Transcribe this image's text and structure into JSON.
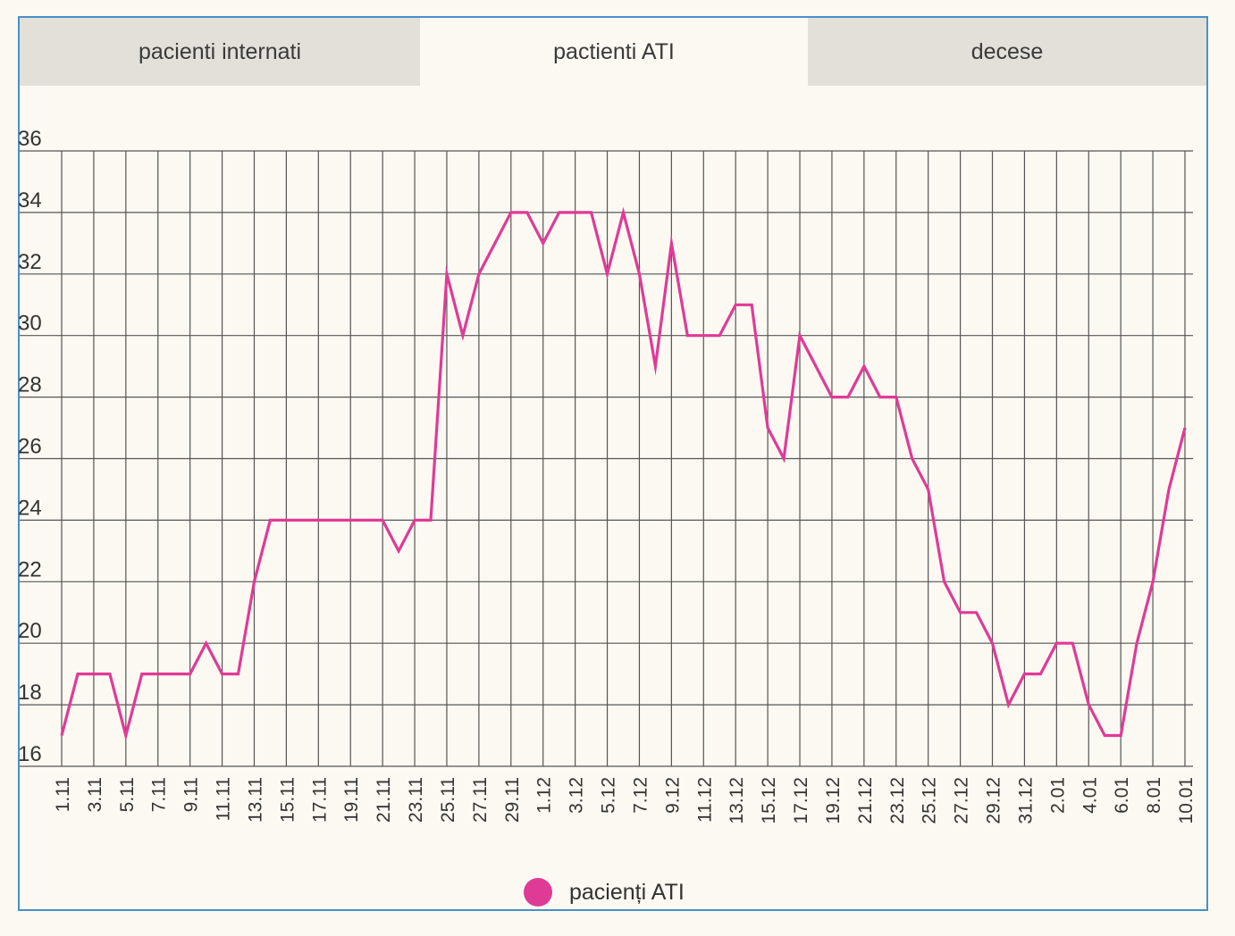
{
  "tabs": [
    {
      "label": "pacienti internati",
      "active": false
    },
    {
      "label": "pactienti ATI",
      "active": true
    },
    {
      "label": "decese",
      "active": false
    }
  ],
  "colors": {
    "line": "#e03a97",
    "grid": "#555555",
    "tab_inactive": "#e2e0d9",
    "border": "#4a90c8"
  },
  "legend": {
    "label": "pacienți ATI",
    "color": "#e03a97"
  },
  "chart_data": {
    "type": "line",
    "grid": true,
    "ylim": [
      16,
      36
    ],
    "yticks": [
      16,
      18,
      20,
      22,
      24,
      26,
      28,
      30,
      32,
      34,
      36
    ],
    "x": [
      "1.11",
      "2.11",
      "3.11",
      "4.11",
      "5.11",
      "6.11",
      "7.11",
      "8.11",
      "9.11",
      "10.11",
      "11.11",
      "12.11",
      "13.11",
      "14.11",
      "15.11",
      "16.11",
      "17.11",
      "18.11",
      "19.11",
      "20.11",
      "21.11",
      "22.11",
      "23.11",
      "24.11",
      "25.11",
      "26.11",
      "27.11",
      "28.11",
      "29.11",
      "30.11",
      "1.12",
      "2.12",
      "3.12",
      "4.12",
      "5.12",
      "6.12",
      "7.12",
      "8.12",
      "9.12",
      "10.12",
      "11.12",
      "12.12",
      "13.12",
      "14.12",
      "15.12",
      "16.12",
      "17.12",
      "18.12",
      "19.12",
      "20.12",
      "21.12",
      "22.12",
      "23.12",
      "24.12",
      "25.12",
      "26.12",
      "27.12",
      "28.12",
      "29.12",
      "30.12",
      "31.12",
      "1.01",
      "2.01",
      "3.01",
      "4.01",
      "5.01",
      "6.01",
      "7.01",
      "8.01",
      "9.01",
      "10.01"
    ],
    "xtick_labels": [
      "1.11",
      "3.11",
      "5.11",
      "7.11",
      "9.11",
      "11.11",
      "13.11",
      "15.11",
      "17.11",
      "19.11",
      "21.11",
      "23.11",
      "25.11",
      "27.11",
      "29.11",
      "1.12",
      "3.12",
      "5.12",
      "7.12",
      "9.12",
      "11.12",
      "13.12",
      "15.12",
      "17.12",
      "19.12",
      "21.12",
      "23.12",
      "25.12",
      "27.12",
      "29.12",
      "31.12",
      "2.01",
      "4.01",
      "6.01",
      "8.01",
      "10.01"
    ],
    "xtick_positions": [
      0,
      2,
      4,
      6,
      8,
      10,
      12,
      14,
      16,
      18,
      20,
      22,
      24,
      26,
      28,
      30,
      32,
      34,
      36,
      38,
      40,
      42,
      44,
      46,
      48,
      50,
      52,
      54,
      56,
      58,
      60,
      62,
      64,
      66,
      68,
      70
    ],
    "series": [
      {
        "name": "pacienți ATI",
        "values": [
          17,
          19,
          19,
          19,
          17,
          19,
          19,
          19,
          19,
          20,
          19,
          19,
          22,
          24,
          24,
          24,
          24,
          24,
          24,
          24,
          24,
          23,
          24,
          24,
          32,
          30,
          32,
          33,
          34,
          34,
          33,
          34,
          34,
          34,
          32,
          34,
          32,
          29,
          33,
          30,
          30,
          30,
          31,
          31,
          27,
          26,
          30,
          29,
          28,
          28,
          29,
          28,
          28,
          26,
          25,
          22,
          21,
          21,
          20,
          18,
          19,
          19,
          20,
          20,
          18,
          17,
          17,
          20,
          22,
          25,
          27
        ]
      }
    ]
  }
}
